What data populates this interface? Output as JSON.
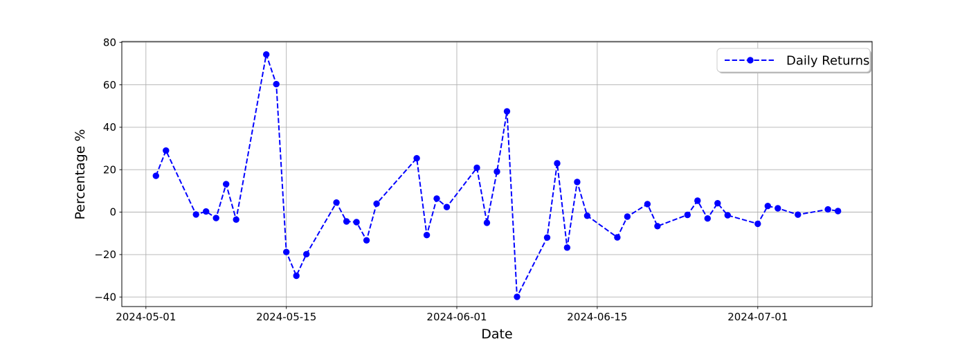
{
  "figure": {
    "background": "#ffffff",
    "text_color": "#000000",
    "accent_color": "#0000ff",
    "grid_color": "#b0b0b0",
    "spine_color": "#000000"
  },
  "chart_data": {
    "type": "line",
    "title": "",
    "xlabel": "Date",
    "ylabel": "Percentage %",
    "legend_label": "Daily Returns",
    "legend_position": "upper right",
    "line_style": "dashed",
    "marker": "circle",
    "color": "#0000ff",
    "grid": true,
    "x_origin": "2024-05-01",
    "xlim_days": [
      -2.4,
      72.4
    ],
    "ylim": [
      -44.5,
      80.4
    ],
    "xticks": [
      "2024-05-01",
      "2024-05-15",
      "2024-06-01",
      "2024-06-15",
      "2024-07-01"
    ],
    "yticks": [
      80,
      60,
      40,
      20,
      0,
      -20,
      -40
    ],
    "ytick_labels": [
      "80",
      "60",
      "40",
      "20",
      "0",
      "−20",
      "−40"
    ],
    "x": [
      "2024-05-02",
      "2024-05-03",
      "2024-05-06",
      "2024-05-07",
      "2024-05-08",
      "2024-05-09",
      "2024-05-10",
      "2024-05-13",
      "2024-05-14",
      "2024-05-15",
      "2024-05-16",
      "2024-05-17",
      "2024-05-20",
      "2024-05-21",
      "2024-05-22",
      "2024-05-23",
      "2024-05-24",
      "2024-05-28",
      "2024-05-29",
      "2024-05-30",
      "2024-05-31",
      "2024-06-03",
      "2024-06-04",
      "2024-06-05",
      "2024-06-06",
      "2024-06-07",
      "2024-06-10",
      "2024-06-11",
      "2024-06-12",
      "2024-06-13",
      "2024-06-14",
      "2024-06-17",
      "2024-06-18",
      "2024-06-20",
      "2024-06-21",
      "2024-06-24",
      "2024-06-25",
      "2024-06-26",
      "2024-06-27",
      "2024-06-28",
      "2024-07-01",
      "2024-07-02",
      "2024-07-03",
      "2024-07-05",
      "2024-07-08",
      "2024-07-09"
    ],
    "series": [
      {
        "name": "Daily Returns",
        "values": [
          17.1,
          29.0,
          -1.1,
          0.3,
          -2.8,
          13.2,
          -3.5,
          74.3,
          60.3,
          -18.8,
          -30.0,
          -19.8,
          4.5,
          -4.4,
          -4.7,
          -13.3,
          4.0,
          25.4,
          -10.8,
          6.4,
          2.4,
          20.9,
          -5.0,
          19.1,
          47.5,
          -39.9,
          -12.0,
          23.0,
          -16.7,
          14.2,
          -1.7,
          -11.9,
          -2.1,
          3.8,
          -6.6,
          -1.3,
          5.4,
          -3.0,
          4.2,
          -1.5,
          -5.5,
          2.9,
          1.8,
          -1.2,
          1.3,
          0.5
        ]
      }
    ]
  }
}
